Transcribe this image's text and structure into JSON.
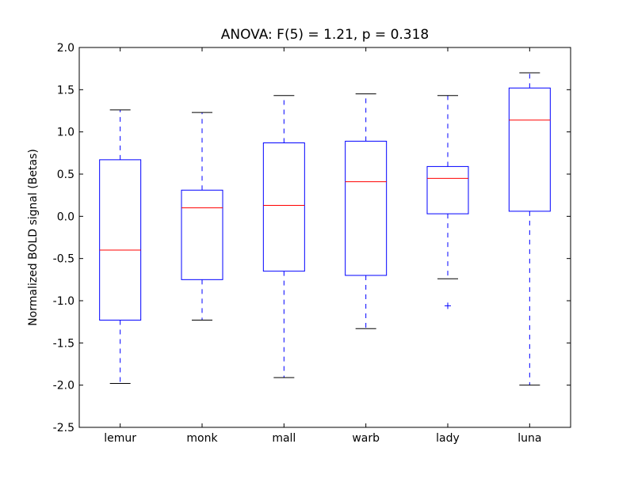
{
  "chart_data": {
    "type": "box",
    "title": "ANOVA: F(5) = 1.21, p = 0.318",
    "xlabel": "",
    "ylabel": "Normalized BOLD signal (Betas)",
    "ylim": [
      -2.5,
      2.0
    ],
    "yticks": [
      "-2.5",
      "-2.0",
      "-1.5",
      "-1.0",
      "-0.5",
      "0.0",
      "0.5",
      "1.0",
      "1.5",
      "2.0"
    ],
    "ytick_values": [
      -2.5,
      -2.0,
      -1.5,
      -1.0,
      -0.5,
      0.0,
      0.5,
      1.0,
      1.5,
      2.0
    ],
    "grid": false,
    "categories": [
      "lemur",
      "monk",
      "mall",
      "warb",
      "lady",
      "luna"
    ],
    "boxes": [
      {
        "whisker_low": -1.98,
        "q1": -1.23,
        "median": -0.4,
        "q3": 0.67,
        "whisker_high": 1.26,
        "outliers": []
      },
      {
        "whisker_low": -1.23,
        "q1": -0.75,
        "median": 0.1,
        "q3": 0.31,
        "whisker_high": 1.23,
        "outliers": []
      },
      {
        "whisker_low": -1.91,
        "q1": -0.65,
        "median": 0.13,
        "q3": 0.87,
        "whisker_high": 1.43,
        "outliers": []
      },
      {
        "whisker_low": -1.33,
        "q1": -0.7,
        "median": 0.41,
        "q3": 0.89,
        "whisker_high": 1.45,
        "outliers": []
      },
      {
        "whisker_low": -0.74,
        "q1": 0.03,
        "median": 0.45,
        "q3": 0.59,
        "whisker_high": 1.43,
        "outliers": [
          -1.06
        ]
      },
      {
        "whisker_low": -2.0,
        "q1": 0.06,
        "median": 1.14,
        "q3": 1.52,
        "whisker_high": 1.7,
        "outliers": []
      }
    ],
    "colors": {
      "box": "#0000ff",
      "median": "#ff0000",
      "cap": "#000000"
    }
  }
}
